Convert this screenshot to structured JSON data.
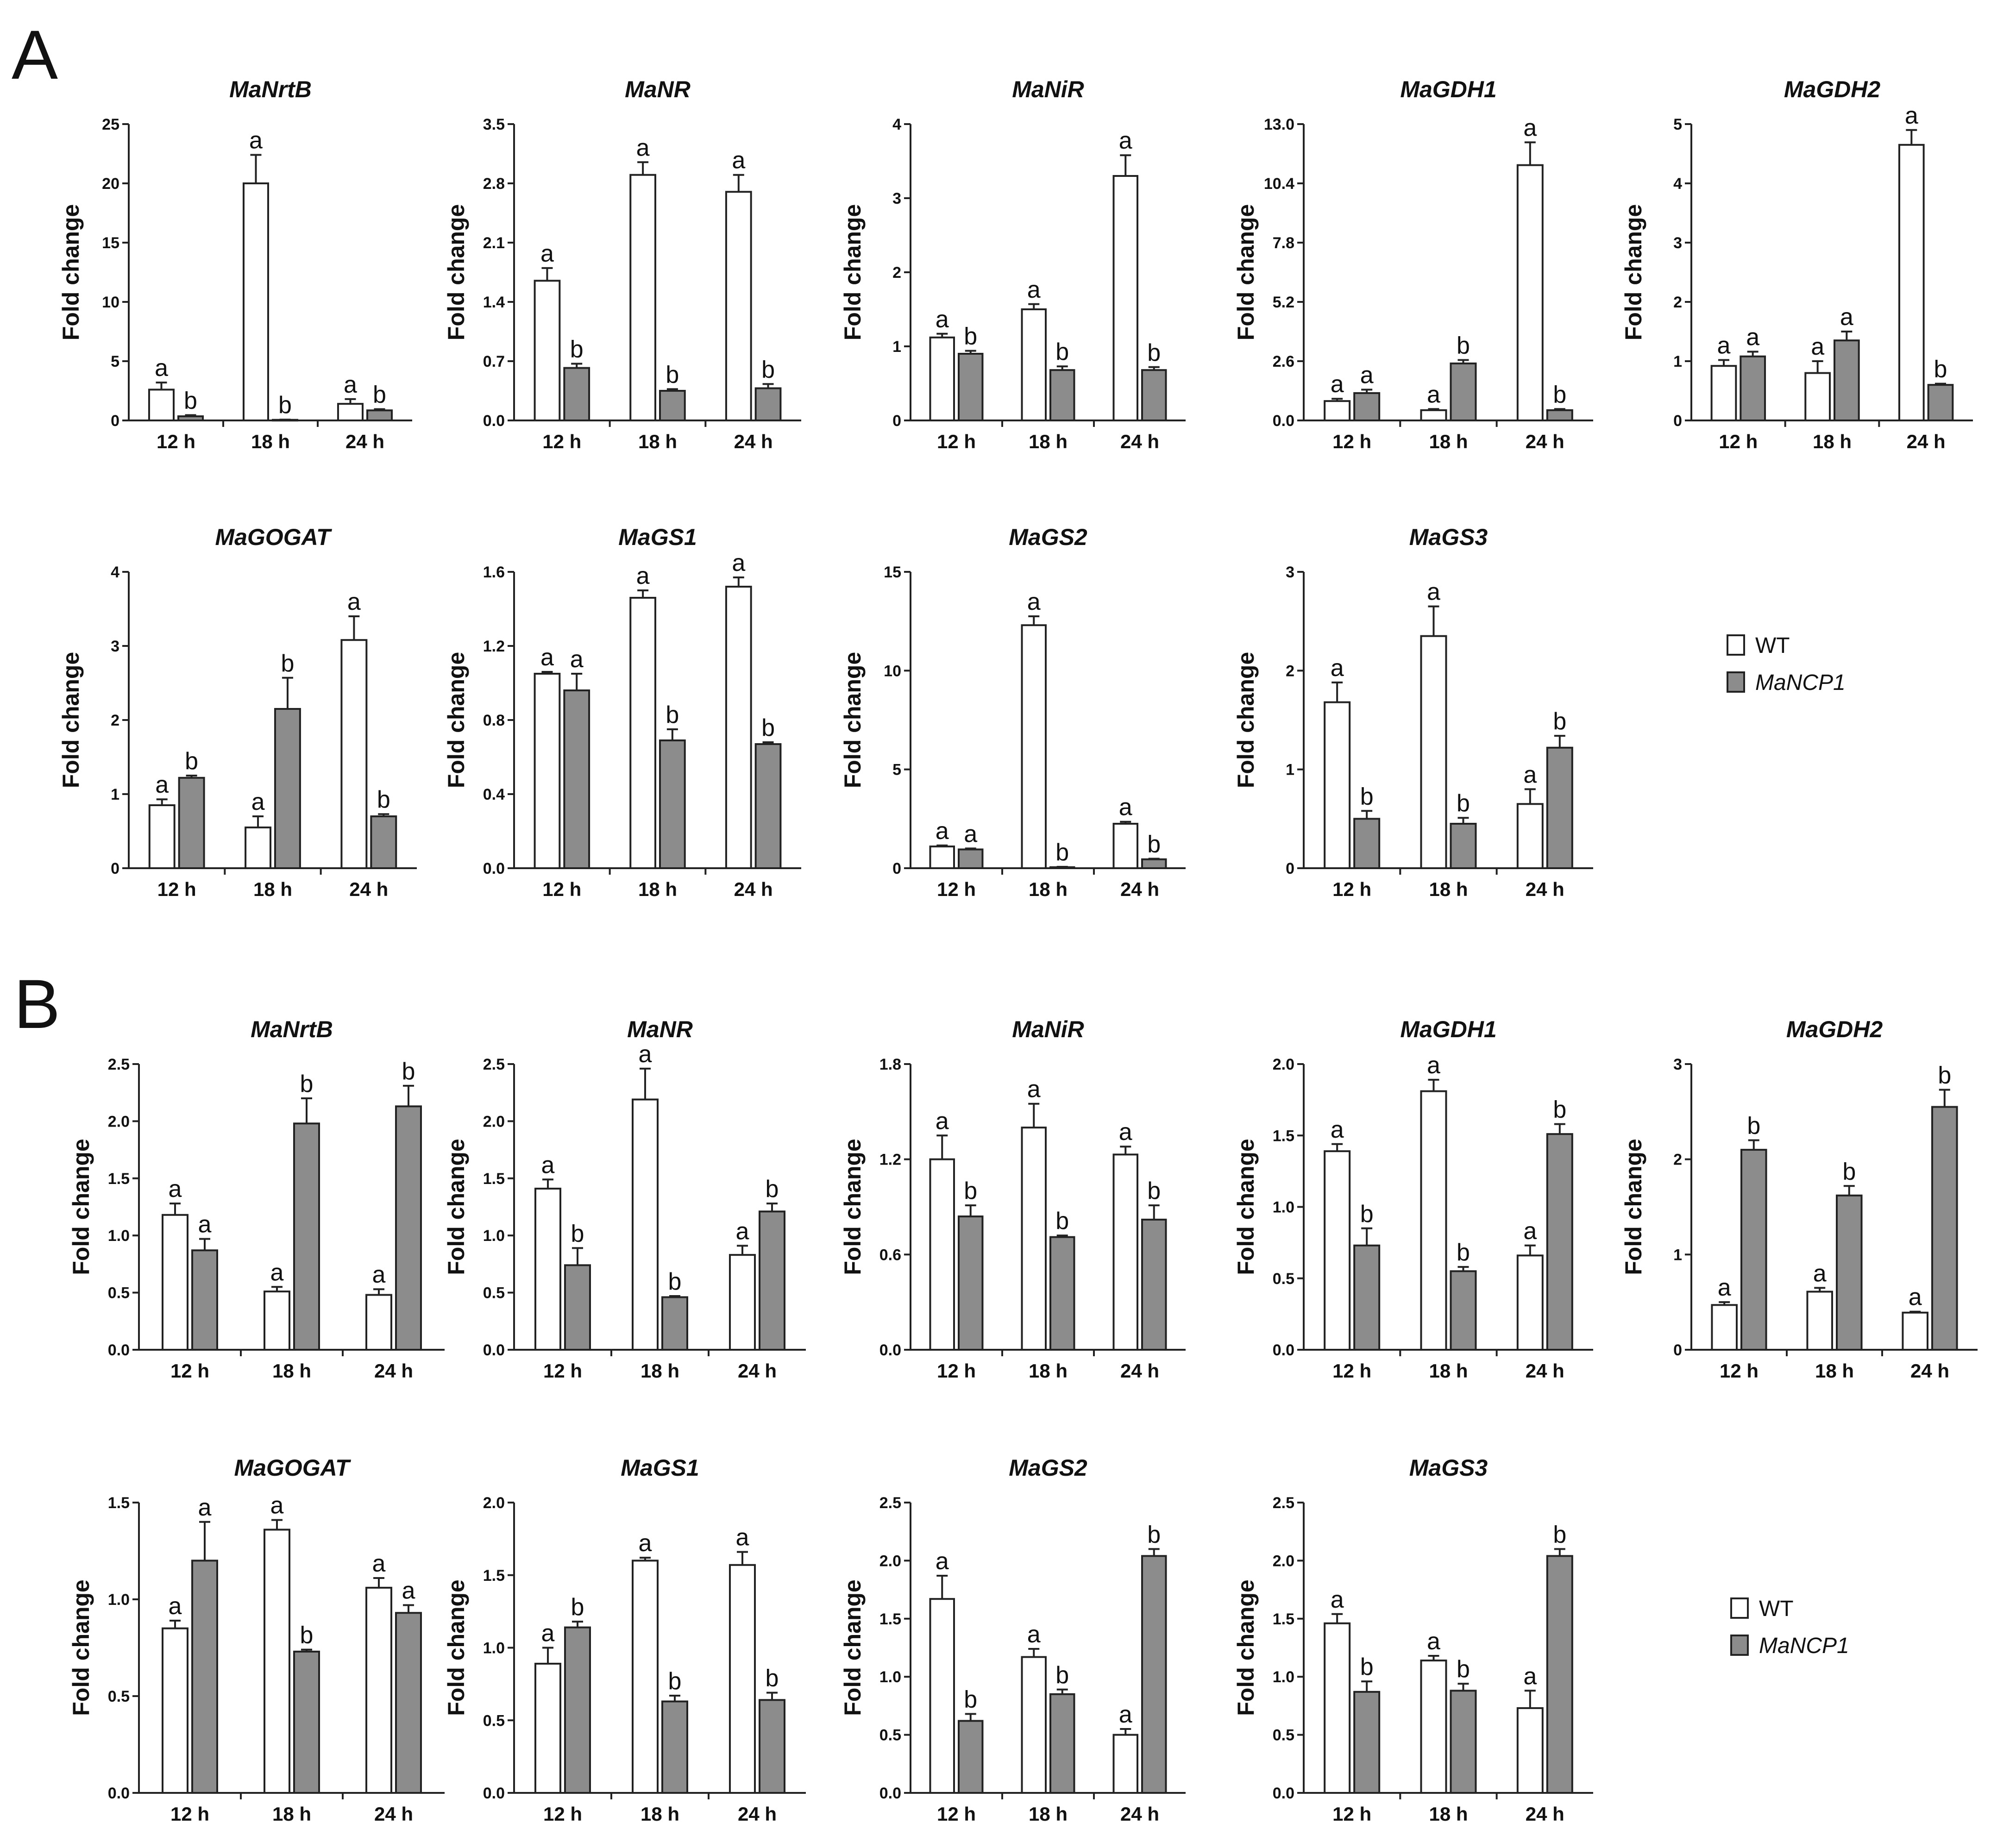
{
  "figure": {
    "panels": [
      "A",
      "B"
    ]
  },
  "legend": {
    "wt_label": "WT",
    "mutant_label": "MaNCP1",
    "wt_color": "#ffffff",
    "mutant_color": "#8c8c8c"
  },
  "chart_data": [
    {
      "type": "bar",
      "panel": "A",
      "title": "MaNrtB",
      "ylabel": "Fold change",
      "categories": [
        "12 h",
        "18 h",
        "24 h"
      ],
      "ylim": [
        0,
        25
      ],
      "yticks": [
        "0",
        "5",
        "10",
        "15",
        "20",
        "25"
      ],
      "series": [
        {
          "name": "WT",
          "values": [
            2.6,
            20.0,
            1.4
          ],
          "errors": [
            0.6,
            2.4,
            0.4
          ],
          "letters": [
            "a",
            "a",
            "a"
          ]
        },
        {
          "name": "MaNCP1",
          "values": [
            0.35,
            0.05,
            0.85
          ],
          "errors": [
            0.1,
            0.02,
            0.1
          ],
          "letters": [
            "b",
            "b",
            "b"
          ]
        }
      ]
    },
    {
      "type": "bar",
      "panel": "A",
      "title": "MaNR",
      "ylabel": "Fold change",
      "categories": [
        "12 h",
        "18 h",
        "24 h"
      ],
      "ylim": [
        0,
        3.5
      ],
      "yticks": [
        "0.0",
        "0.7",
        "1.4",
        "2.1",
        "2.8",
        "3.5"
      ],
      "series": [
        {
          "name": "WT",
          "values": [
            1.65,
            2.9,
            2.7
          ],
          "errors": [
            0.15,
            0.15,
            0.2
          ],
          "letters": [
            "a",
            "a",
            "a"
          ]
        },
        {
          "name": "MaNCP1",
          "values": [
            0.62,
            0.35,
            0.38
          ],
          "errors": [
            0.05,
            0.02,
            0.05
          ],
          "letters": [
            "b",
            "b",
            "b"
          ]
        }
      ]
    },
    {
      "type": "bar",
      "panel": "A",
      "title": "MaNiR",
      "ylabel": "Fold change",
      "categories": [
        "12 h",
        "18 h",
        "24 h"
      ],
      "ylim": [
        0,
        4
      ],
      "yticks": [
        "0",
        "1",
        "2",
        "3",
        "4"
      ],
      "series": [
        {
          "name": "WT",
          "values": [
            1.12,
            1.5,
            3.3
          ],
          "errors": [
            0.05,
            0.07,
            0.28
          ],
          "letters": [
            "a",
            "a",
            "a"
          ]
        },
        {
          "name": "MaNCP1",
          "values": [
            0.9,
            0.68,
            0.68
          ],
          "errors": [
            0.04,
            0.05,
            0.04
          ],
          "letters": [
            "b",
            "b",
            "b"
          ]
        }
      ]
    },
    {
      "type": "bar",
      "panel": "A",
      "title": "MaGDH1",
      "ylabel": "Fold change",
      "categories": [
        "12 h",
        "18 h",
        "24 h"
      ],
      "ylim": [
        0,
        13
      ],
      "yticks": [
        "0.0",
        "2.6",
        "5.2",
        "7.8",
        "10.4",
        "13.0"
      ],
      "series": [
        {
          "name": "WT",
          "values": [
            0.85,
            0.45,
            11.2
          ],
          "errors": [
            0.1,
            0.05,
            1.0
          ],
          "letters": [
            "a",
            "a",
            "a"
          ]
        },
        {
          "name": "MaNCP1",
          "values": [
            1.2,
            2.5,
            0.45
          ],
          "errors": [
            0.15,
            0.15,
            0.05
          ],
          "letters": [
            "a",
            "b",
            "b"
          ]
        }
      ]
    },
    {
      "type": "bar",
      "panel": "A",
      "title": "MaGDH2",
      "ylabel": "Fold change",
      "categories": [
        "12 h",
        "18 h",
        "24 h"
      ],
      "ylim": [
        0,
        5
      ],
      "yticks": [
        "0",
        "1",
        "2",
        "3",
        "4",
        "5"
      ],
      "series": [
        {
          "name": "WT",
          "values": [
            0.92,
            0.8,
            4.65
          ],
          "errors": [
            0.1,
            0.2,
            0.25
          ],
          "letters": [
            "a",
            "a",
            "a"
          ]
        },
        {
          "name": "MaNCP1",
          "values": [
            1.08,
            1.35,
            0.6
          ],
          "errors": [
            0.08,
            0.15,
            0.02
          ],
          "letters": [
            "a",
            "a",
            "b"
          ]
        }
      ]
    },
    {
      "type": "bar",
      "panel": "A",
      "title": "MaGOGAT",
      "ylabel": "Fold change",
      "categories": [
        "12 h",
        "18 h",
        "24 h"
      ],
      "ylim": [
        0,
        4
      ],
      "yticks": [
        "0",
        "1",
        "2",
        "3",
        "4"
      ],
      "series": [
        {
          "name": "WT",
          "values": [
            0.85,
            0.55,
            3.08
          ],
          "errors": [
            0.08,
            0.15,
            0.32
          ],
          "letters": [
            "a",
            "a",
            "a"
          ]
        },
        {
          "name": "MaNCP1",
          "values": [
            1.22,
            2.15,
            0.7
          ],
          "errors": [
            0.03,
            0.42,
            0.03
          ],
          "letters": [
            "b",
            "b",
            "b"
          ]
        }
      ]
    },
    {
      "type": "bar",
      "panel": "A",
      "title": "MaGS1",
      "ylabel": "Fold change",
      "categories": [
        "12 h",
        "18 h",
        "24 h"
      ],
      "ylim": [
        0,
        1.6
      ],
      "yticks": [
        "0.0",
        "0.4",
        "0.8",
        "1.2",
        "1.6"
      ],
      "series": [
        {
          "name": "WT",
          "values": [
            1.05,
            1.46,
            1.52
          ],
          "errors": [
            0.01,
            0.04,
            0.05
          ],
          "letters": [
            "a",
            "a",
            "a"
          ]
        },
        {
          "name": "MaNCP1",
          "values": [
            0.96,
            0.69,
            0.67
          ],
          "errors": [
            0.09,
            0.06,
            0.01
          ],
          "letters": [
            "a",
            "b",
            "b"
          ]
        }
      ]
    },
    {
      "type": "bar",
      "panel": "A",
      "title": "MaGS2",
      "ylabel": "Fold change",
      "categories": [
        "12 h",
        "18 h",
        "24 h"
      ],
      "ylim": [
        0,
        15
      ],
      "yticks": [
        "0",
        "5",
        "10",
        "15"
      ],
      "series": [
        {
          "name": "WT",
          "values": [
            1.1,
            12.3,
            2.25
          ],
          "errors": [
            0.05,
            0.45,
            0.1
          ],
          "letters": [
            "a",
            "a",
            "a"
          ]
        },
        {
          "name": "MaNCP1",
          "values": [
            0.95,
            0.05,
            0.45
          ],
          "errors": [
            0.05,
            0.02,
            0.03
          ],
          "letters": [
            "a",
            "b",
            "b"
          ]
        }
      ]
    },
    {
      "type": "bar",
      "panel": "A",
      "title": "MaGS3",
      "ylabel": "Fold change",
      "categories": [
        "12 h",
        "18 h",
        "24 h"
      ],
      "ylim": [
        0,
        3
      ],
      "yticks": [
        "0",
        "1",
        "2",
        "3"
      ],
      "series": [
        {
          "name": "WT",
          "values": [
            1.68,
            2.35,
            0.65
          ],
          "errors": [
            0.2,
            0.3,
            0.15
          ],
          "letters": [
            "a",
            "a",
            "a"
          ]
        },
        {
          "name": "MaNCP1",
          "values": [
            0.5,
            0.45,
            1.22
          ],
          "errors": [
            0.08,
            0.06,
            0.12
          ],
          "letters": [
            "b",
            "b",
            "b"
          ]
        }
      ]
    },
    {
      "type": "bar",
      "panel": "B",
      "title": "MaNrtB",
      "ylabel": "Fold change",
      "categories": [
        "12 h",
        "18 h",
        "24 h"
      ],
      "ylim": [
        0,
        2.5
      ],
      "yticks": [
        "0.0",
        "0.5",
        "1.0",
        "1.5",
        "2.0",
        "2.5"
      ],
      "series": [
        {
          "name": "WT",
          "values": [
            1.18,
            0.51,
            0.48
          ],
          "errors": [
            0.1,
            0.04,
            0.05
          ],
          "letters": [
            "a",
            "a",
            "a"
          ]
        },
        {
          "name": "MaNCP1",
          "values": [
            0.87,
            1.98,
            2.13
          ],
          "errors": [
            0.1,
            0.22,
            0.18
          ],
          "letters": [
            "a",
            "b",
            "b"
          ]
        }
      ]
    },
    {
      "type": "bar",
      "panel": "B",
      "title": "MaNR",
      "ylabel": "Fold change",
      "categories": [
        "12 h",
        "18 h",
        "24 h"
      ],
      "ylim": [
        0,
        2.5
      ],
      "yticks": [
        "0.0",
        "0.5",
        "1.0",
        "1.5",
        "2.0",
        "2.5"
      ],
      "series": [
        {
          "name": "WT",
          "values": [
            1.41,
            2.19,
            0.83
          ],
          "errors": [
            0.08,
            0.27,
            0.08
          ],
          "letters": [
            "a",
            "a",
            "a"
          ]
        },
        {
          "name": "MaNCP1",
          "values": [
            0.74,
            0.46,
            1.21
          ],
          "errors": [
            0.15,
            0.01,
            0.07
          ],
          "letters": [
            "b",
            "b",
            "b"
          ]
        }
      ]
    },
    {
      "type": "bar",
      "panel": "B",
      "title": "MaNiR",
      "ylabel": "Fold change",
      "categories": [
        "12 h",
        "18 h",
        "24 h"
      ],
      "ylim": [
        0,
        1.8
      ],
      "yticks": [
        "0.0",
        "0.6",
        "1.2",
        "1.8"
      ],
      "series": [
        {
          "name": "WT",
          "values": [
            1.2,
            1.4,
            1.23
          ],
          "errors": [
            0.15,
            0.15,
            0.05
          ],
          "letters": [
            "a",
            "a",
            "a"
          ]
        },
        {
          "name": "MaNCP1",
          "values": [
            0.84,
            0.71,
            0.82
          ],
          "errors": [
            0.07,
            0.01,
            0.09
          ],
          "letters": [
            "b",
            "b",
            "b"
          ]
        }
      ]
    },
    {
      "type": "bar",
      "panel": "B",
      "title": "MaGDH1",
      "ylabel": "Fold change",
      "categories": [
        "12 h",
        "18 h",
        "24 h"
      ],
      "ylim": [
        0,
        2.0
      ],
      "yticks": [
        "0.0",
        "0.5",
        "1.0",
        "1.5",
        "2.0"
      ],
      "series": [
        {
          "name": "WT",
          "values": [
            1.39,
            1.81,
            0.66
          ],
          "errors": [
            0.05,
            0.08,
            0.07
          ],
          "letters": [
            "a",
            "a",
            "a"
          ]
        },
        {
          "name": "MaNCP1",
          "values": [
            0.73,
            0.55,
            1.51
          ],
          "errors": [
            0.12,
            0.03,
            0.07
          ],
          "letters": [
            "b",
            "b",
            "b"
          ]
        }
      ]
    },
    {
      "type": "bar",
      "panel": "B",
      "title": "MaGDH2",
      "ylabel": "Fold change",
      "categories": [
        "12 h",
        "18 h",
        "24 h"
      ],
      "ylim": [
        0,
        3
      ],
      "yticks": [
        "0",
        "1",
        "2",
        "3"
      ],
      "series": [
        {
          "name": "WT",
          "values": [
            0.47,
            0.61,
            0.39
          ],
          "errors": [
            0.03,
            0.04,
            0.01
          ],
          "letters": [
            "a",
            "a",
            "a"
          ]
        },
        {
          "name": "MaNCP1",
          "values": [
            2.1,
            1.62,
            2.55
          ],
          "errors": [
            0.1,
            0.1,
            0.18
          ],
          "letters": [
            "b",
            "b",
            "b"
          ]
        }
      ]
    },
    {
      "type": "bar",
      "panel": "B",
      "title": "MaGOGAT",
      "ylabel": "Fold change",
      "categories": [
        "12 h",
        "18 h",
        "24 h"
      ],
      "ylim": [
        0,
        1.5
      ],
      "yticks": [
        "0.0",
        "0.5",
        "1.0",
        "1.5"
      ],
      "series": [
        {
          "name": "WT",
          "values": [
            0.85,
            1.36,
            1.06
          ],
          "errors": [
            0.04,
            0.05,
            0.05
          ],
          "letters": [
            "a",
            "a",
            "a"
          ]
        },
        {
          "name": "MaNCP1",
          "values": [
            1.2,
            0.73,
            0.93
          ],
          "errors": [
            0.2,
            0.01,
            0.04
          ],
          "letters": [
            "a",
            "b",
            "a"
          ]
        }
      ]
    },
    {
      "type": "bar",
      "panel": "B",
      "title": "MaGS1",
      "ylabel": "Fold change",
      "categories": [
        "12 h",
        "18 h",
        "24 h"
      ],
      "ylim": [
        0,
        2.0
      ],
      "yticks": [
        "0.0",
        "0.5",
        "1.0",
        "1.5",
        "2.0"
      ],
      "series": [
        {
          "name": "WT",
          "values": [
            0.89,
            1.6,
            1.57
          ],
          "errors": [
            0.11,
            0.02,
            0.09
          ],
          "letters": [
            "a",
            "a",
            "a"
          ]
        },
        {
          "name": "MaNCP1",
          "values": [
            1.14,
            0.63,
            0.64
          ],
          "errors": [
            0.04,
            0.04,
            0.05
          ],
          "letters": [
            "b",
            "b",
            "b"
          ]
        }
      ]
    },
    {
      "type": "bar",
      "panel": "B",
      "title": "MaGS2",
      "ylabel": "Fold change",
      "categories": [
        "12 h",
        "18 h",
        "24 h"
      ],
      "ylim": [
        0,
        2.5
      ],
      "yticks": [
        "0.0",
        "0.5",
        "1.0",
        "1.5",
        "2.0",
        "2.5"
      ],
      "series": [
        {
          "name": "WT",
          "values": [
            1.67,
            1.17,
            0.5
          ],
          "errors": [
            0.2,
            0.07,
            0.05
          ],
          "letters": [
            "a",
            "a",
            "a"
          ]
        },
        {
          "name": "MaNCP1",
          "values": [
            0.62,
            0.85,
            2.04
          ],
          "errors": [
            0.06,
            0.04,
            0.06
          ],
          "letters": [
            "b",
            "b",
            "b"
          ]
        }
      ]
    },
    {
      "type": "bar",
      "panel": "B",
      "title": "MaGS3",
      "ylabel": "Fold change",
      "categories": [
        "12 h",
        "18 h",
        "24 h"
      ],
      "ylim": [
        0,
        2.5
      ],
      "yticks": [
        "0.0",
        "0.5",
        "1.0",
        "1.5",
        "2.0",
        "2.5"
      ],
      "series": [
        {
          "name": "WT",
          "values": [
            1.46,
            1.14,
            0.73
          ],
          "errors": [
            0.08,
            0.04,
            0.15
          ],
          "letters": [
            "a",
            "a",
            "a"
          ]
        },
        {
          "name": "MaNCP1",
          "values": [
            0.87,
            0.88,
            2.04
          ],
          "errors": [
            0.09,
            0.06,
            0.06
          ],
          "letters": [
            "b",
            "b",
            "b"
          ]
        }
      ]
    }
  ]
}
